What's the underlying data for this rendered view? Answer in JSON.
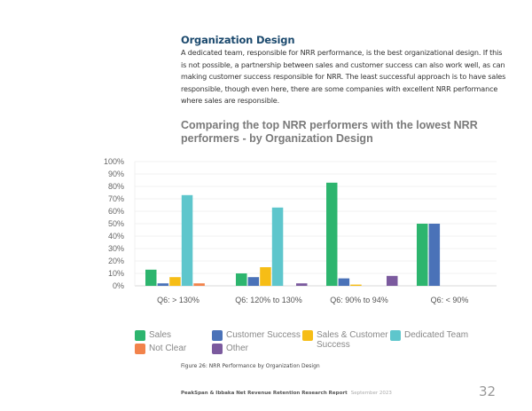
{
  "section": {
    "title": "Organization Design",
    "body": "A dedicated team, responsible for NRR performance, is the best organizational design. If this is not possible, a partnership between sales and customer success can also work well, as can making customer success responsible for NRR. The least successful approach is to have sales responsible, though even here, there are some companies with excellent NRR performance where sales are responsible."
  },
  "chart_data": {
    "type": "bar",
    "title": "Comparing the top NRR performers with the lowest NRR performers - by Organization Design",
    "xlabel": "",
    "ylabel": "",
    "ylim": [
      0,
      100
    ],
    "y_ticks": [
      "0%",
      "10%",
      "20%",
      "30%",
      "40%",
      "50%",
      "60%",
      "70%",
      "80%",
      "90%",
      "100%"
    ],
    "grid": true,
    "legend_position": "bottom",
    "categories": [
      "Q6: > 130%",
      "Q6: 120% to 130%",
      "Q6: 90% to 94%",
      "Q6: < 90%"
    ],
    "series": [
      {
        "name": "Sales",
        "color": "#2db56e",
        "values": [
          13,
          10,
          83,
          50
        ]
      },
      {
        "name": "Customer Success",
        "color": "#4a72b8",
        "values": [
          2,
          7,
          6,
          50
        ]
      },
      {
        "name": "Sales & Customer Success",
        "color": "#f6bd16",
        "values": [
          7,
          15,
          1,
          0
        ]
      },
      {
        "name": "Dedicated Team",
        "color": "#5ec6cc",
        "values": [
          73,
          63,
          0,
          0
        ]
      },
      {
        "name": "Not Clear",
        "color": "#f2834b",
        "values": [
          2,
          0,
          0,
          0
        ]
      },
      {
        "name": "Other",
        "color": "#7b5a9e",
        "values": [
          0,
          2,
          8,
          0
        ]
      }
    ]
  },
  "legend": [
    {
      "label": "Sales",
      "color": "#2db56e"
    },
    {
      "label": "Customer Success",
      "color": "#4a72b8"
    },
    {
      "label": "Sales & Customer Success",
      "color": "#f6bd16"
    },
    {
      "label": "Dedicated Team",
      "color": "#5ec6cc"
    },
    {
      "label": "Not Clear",
      "color": "#f2834b"
    },
    {
      "label": "Other",
      "color": "#7b5a9e"
    }
  ],
  "figure_caption": "Figure 26: NRR Performance by Organization Design",
  "footer": {
    "report": "PeakSpan & Ibbaka Net Revenue Retention Research Report",
    "date": "September 2023",
    "page_number": "32"
  }
}
